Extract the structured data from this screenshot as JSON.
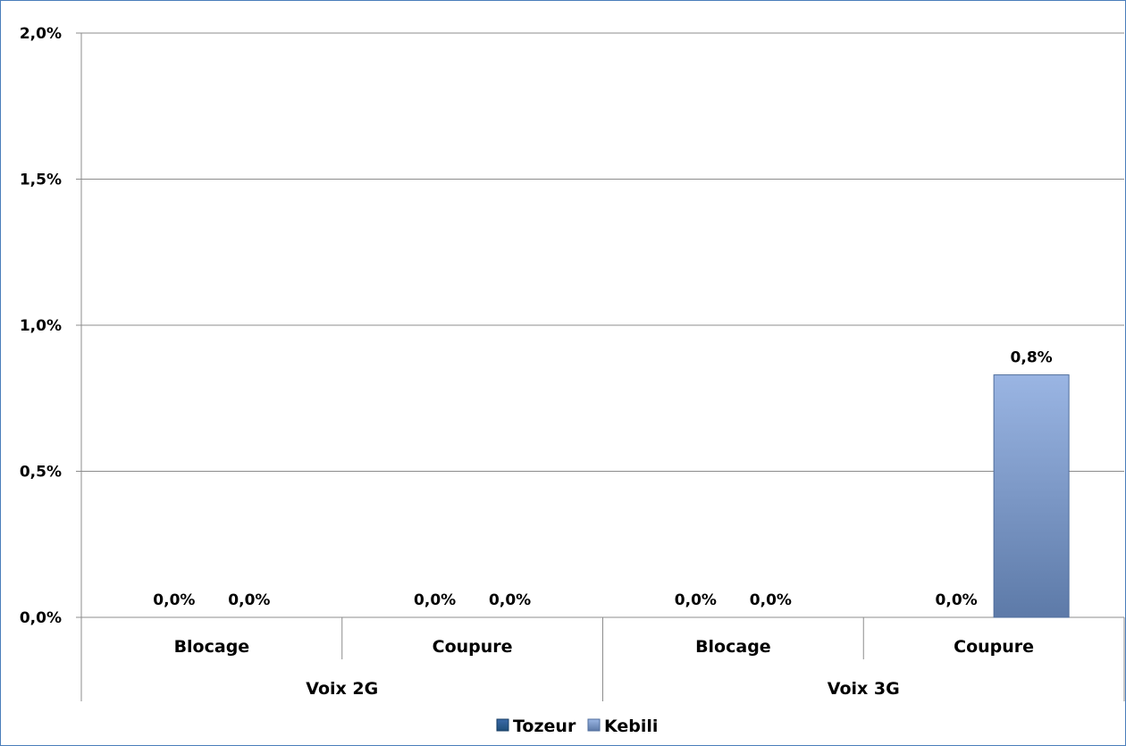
{
  "chart_data": {
    "type": "bar",
    "title": "",
    "xlabel": "",
    "ylabel": "",
    "ylim": [
      0,
      2.0
    ],
    "yticks": [
      "0,0%",
      "0,5%",
      "1,0%",
      "1,5%",
      "2,0%"
    ],
    "grid": true,
    "legend_position": "bottom",
    "groups": [
      {
        "label": "Voix 2G",
        "categories": [
          "Blocage",
          "Coupure"
        ]
      },
      {
        "label": "Voix 3G",
        "categories": [
          "Blocage",
          "Coupure"
        ]
      }
    ],
    "series": [
      {
        "name": "Tozeur",
        "color": "#1f4e79",
        "values": [
          0.0,
          0.0,
          0.0,
          0.0
        ],
        "labels": [
          "0,0%",
          "0,0%",
          "0,0%",
          "0,0%"
        ]
      },
      {
        "name": "Kebili",
        "color": "#8eaadb",
        "values": [
          0.0,
          0.0,
          0.0,
          0.83
        ],
        "labels": [
          "0,0%",
          "0,0%",
          "0,0%",
          "0,8%"
        ]
      }
    ]
  }
}
